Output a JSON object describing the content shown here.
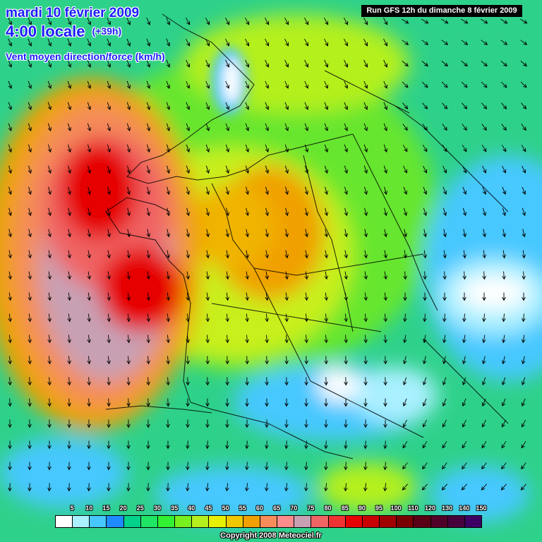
{
  "header": {
    "date_line": "mardi 10 février 2009",
    "time_line": "4:00 locale",
    "lead_time": "(+39h)",
    "parameter": "Vent moyen direction/force (km/h)"
  },
  "run_info": "Run GFS 12h du dimanche 8 février 2009",
  "legend": {
    "labels": [
      "5",
      "10",
      "15",
      "20",
      "25",
      "30",
      "35",
      "40",
      "45",
      "50",
      "55",
      "60",
      "65",
      "70",
      "75",
      "80",
      "85",
      "90",
      "95",
      "100",
      "110",
      "120",
      "130",
      "140",
      "150"
    ],
    "colors": [
      "#ffffff",
      "#aaf0ff",
      "#46c8ff",
      "#1e8cff",
      "#00d28c",
      "#1ee664",
      "#32f032",
      "#78f01e",
      "#b4f01e",
      "#e6f000",
      "#f0c800",
      "#f0a000",
      "#f58c5a",
      "#ff8c8c",
      "#c8a0b4",
      "#f06464",
      "#f03232",
      "#e60000",
      "#c80000",
      "#a00000",
      "#780000",
      "#5a0014",
      "#500028",
      "#46003c",
      "#3c0064"
    ]
  },
  "copyright": "Copyright 2008 Meteociel.fr"
}
